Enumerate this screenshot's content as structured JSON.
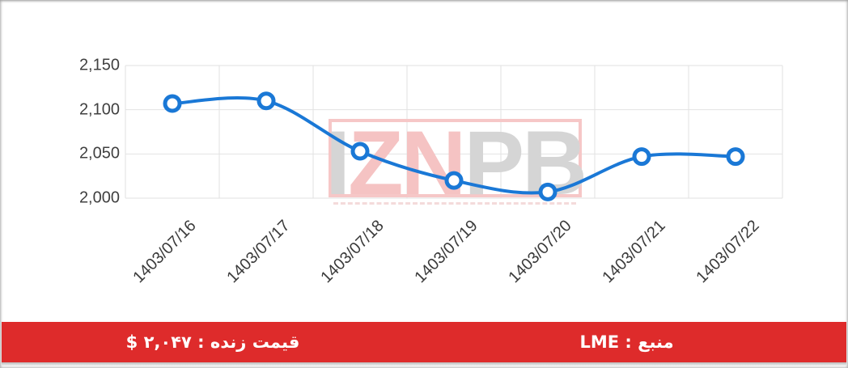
{
  "chart_data": {
    "type": "line",
    "title": "",
    "xlabel": "",
    "ylabel": "",
    "categories": [
      "1403/07/16",
      "1403/07/17",
      "1403/07/18",
      "1403/07/19",
      "1403/07/20",
      "1403/07/21",
      "1403/07/22"
    ],
    "values": [
      2107,
      2110,
      2053,
      2020,
      2007,
      2047,
      2047
    ],
    "ylim": [
      2000,
      2150
    ],
    "yticks": [
      2150,
      2100,
      2050,
      2000
    ],
    "ytick_labels": [
      "2,150",
      "2,100",
      "2,050",
      "2,000"
    ],
    "grid": true,
    "legend_position": "none",
    "line_color": "#1a78d6",
    "marker_style": "open-circle",
    "marker_fill": "#ffffff",
    "grid_color": "#e2e2e2"
  },
  "watermark": {
    "text": "IZNPB",
    "letters": [
      {
        "ch": "I",
        "tone": "gray"
      },
      {
        "ch": "Z",
        "tone": "pink"
      },
      {
        "ch": "N",
        "tone": "pink"
      },
      {
        "ch": "P",
        "tone": "gray"
      },
      {
        "ch": "B",
        "tone": "gray"
      }
    ]
  },
  "footer": {
    "bg_color": "#de2b2b",
    "source_label": "منبع : LME",
    "live_price_label": "قیمت زنده : ۲,۰۴۷ $"
  }
}
